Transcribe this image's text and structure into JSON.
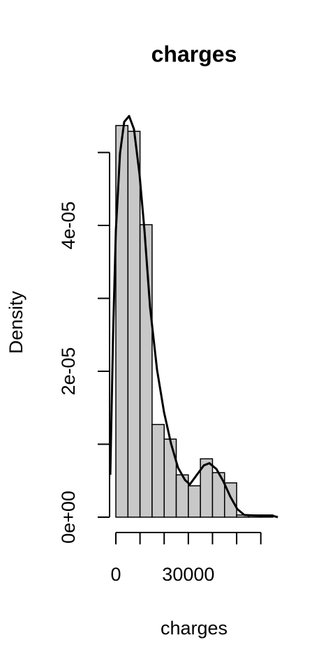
{
  "chart_data": {
    "type": "histogram",
    "title": "charges",
    "x_label": "charges",
    "y_label": "Density",
    "bins": [
      0,
      5000,
      10000,
      15000,
      20000,
      25000,
      30000,
      35000,
      40000,
      45000,
      50000,
      55000,
      60000,
      65000
    ],
    "values": [
      5.37e-05,
      5.29e-05,
      4.01e-05,
      1.27e-05,
      1.07e-05,
      5.8e-06,
      4.3e-06,
      8e-06,
      6.1e-06,
      4.7e-06,
      3e-07,
      3e-07,
      3e-07
    ],
    "color": "#c8c8c8",
    "density": {
      "color": "#000000",
      "x": [
        -2300,
        -1150,
        0,
        1730,
        3460,
        5490,
        7500,
        9800,
        11850,
        14160,
        17050,
        19940,
        22830,
        25720,
        28610,
        30640,
        33530,
        36420,
        38730,
        41620,
        44510,
        47400,
        50290,
        53180,
        58960,
        64740,
        67050
      ],
      "y": [
        5.8e-06,
        2.5e-05,
        3.93e-05,
        4.99e-05,
        5.42e-05,
        5.5e-05,
        5.32e-05,
        4.7e-05,
        3.93e-05,
        2.88e-05,
        2.02e-05,
        1.44e-05,
        1.01e-05,
        6.8e-06,
        5.1e-06,
        4.5e-06,
        5.8e-06,
        7.1e-06,
        7.4e-06,
        6.6e-06,
        4.9e-06,
        2.8e-06,
        1.1e-06,
        3e-07,
        2e-07,
        2e-07,
        0
      ]
    },
    "xlim": [
      0,
      65000
    ],
    "ylim": [
      0,
      5.5e-05
    ],
    "xticks": [
      {
        "value": 0,
        "label": "0"
      },
      {
        "value": 10000,
        "label": null
      },
      {
        "value": 20000,
        "label": null
      },
      {
        "value": 30000,
        "label": "30000"
      },
      {
        "value": 40000,
        "label": null
      },
      {
        "value": 50000,
        "label": null
      },
      {
        "value": 60000,
        "label": null
      }
    ],
    "yticks": [
      {
        "value": 0,
        "label": "0e+00"
      },
      {
        "value": 1e-05,
        "label": null
      },
      {
        "value": 2e-05,
        "label": "2e-05"
      },
      {
        "value": 3e-05,
        "label": null
      },
      {
        "value": 4e-05,
        "label": "4e-05"
      },
      {
        "value": 5e-05,
        "label": null
      }
    ]
  }
}
